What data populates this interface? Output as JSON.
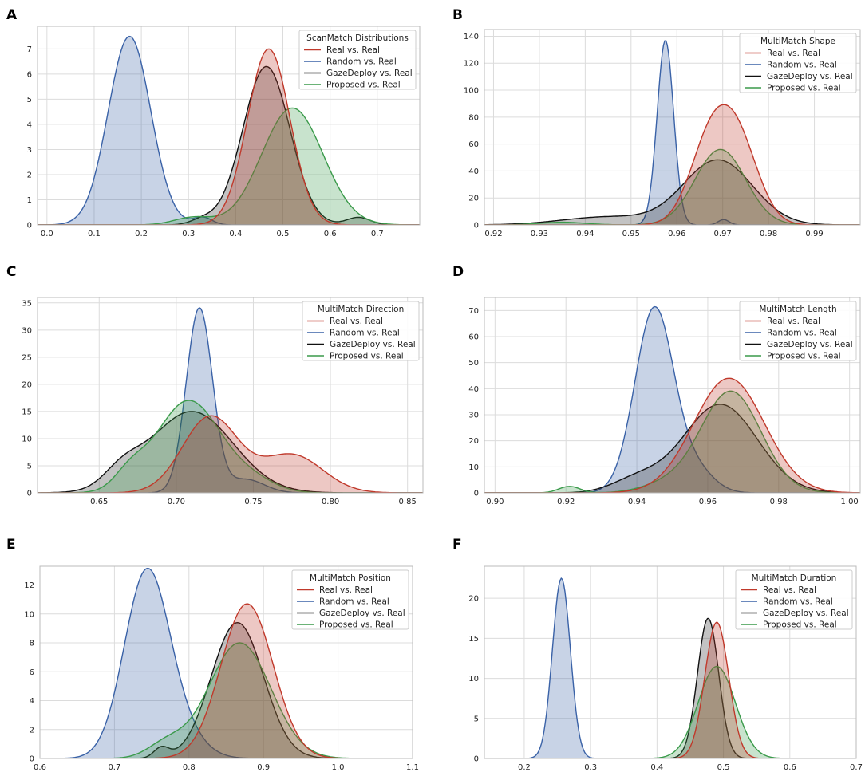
{
  "chart_data": [
    {
      "panel": "A",
      "type": "area",
      "title": "",
      "legend_title": "ScanMatch Distributions",
      "legend_loc": "top-right",
      "xlim": [
        -0.02,
        0.79
      ],
      "ylim": [
        0,
        7.9
      ],
      "xticks": [
        0.0,
        0.1,
        0.2,
        0.3,
        0.4,
        0.5,
        0.6,
        0.7
      ],
      "xtick_labels": [
        "0.0",
        "0.1",
        "0.2",
        "0.3",
        "0.4",
        "0.5",
        "0.6",
        "0.7"
      ],
      "yticks": [
        0,
        1,
        2,
        3,
        4,
        5,
        6,
        7
      ],
      "ytick_labels": [
        "0",
        "1",
        "2",
        "3",
        "4",
        "5",
        "6",
        "7"
      ],
      "series": [
        {
          "name": "Real vs. Real",
          "components": [
            [
              0.47,
              0.045,
              7.0
            ]
          ]
        },
        {
          "name": "Random vs. Real",
          "components": [
            [
              0.175,
              0.045,
              7.5
            ],
            [
              0.33,
              0.02,
              0.3
            ]
          ]
        },
        {
          "name": "GazeDeploy vs. Real",
          "components": [
            [
              0.465,
              0.05,
              6.3
            ],
            [
              0.33,
              0.025,
              0.2
            ],
            [
              0.66,
              0.025,
              0.3
            ]
          ]
        },
        {
          "name": "Proposed vs. Real",
          "components": [
            [
              0.52,
              0.065,
              4.65
            ],
            [
              0.31,
              0.04,
              0.3
            ]
          ]
        }
      ]
    },
    {
      "panel": "B",
      "type": "area",
      "title": "",
      "legend_title": "MultiMatch Shape",
      "legend_loc": "top-right",
      "xlim": [
        0.918,
        1.0
      ],
      "ylim": [
        0,
        145
      ],
      "xticks": [
        0.92,
        0.93,
        0.94,
        0.95,
        0.96,
        0.97,
        0.98,
        0.99
      ],
      "xtick_labels": [
        "0.92",
        "0.93",
        "0.94",
        "0.95",
        "0.96",
        "0.97",
        "0.98",
        "0.99"
      ],
      "yticks": [
        0,
        20,
        40,
        60,
        80,
        100,
        120,
        140
      ],
      "ytick_labels": [
        "0",
        "20",
        "40",
        "60",
        "80",
        "100",
        "120",
        "140"
      ],
      "series": [
        {
          "name": "Real vs. Real",
          "components": [
            [
              0.9672,
              0.0045,
              58
            ],
            [
              0.9735,
              0.0045,
              56
            ]
          ]
        },
        {
          "name": "Random vs. Real",
          "components": [
            [
              0.9575,
              0.0018,
              137
            ],
            [
              0.9702,
              0.0012,
              4
            ]
          ]
        },
        {
          "name": "GazeDeploy vs. Real",
          "components": [
            [
              0.969,
              0.0075,
              48
            ],
            [
              0.945,
              0.01,
              6
            ]
          ]
        },
        {
          "name": "Proposed vs. Real",
          "components": [
            [
              0.9695,
              0.0055,
              56
            ],
            [
              0.935,
              0.005,
              2
            ]
          ]
        }
      ]
    },
    {
      "panel": "C",
      "type": "area",
      "title": "",
      "legend_title": "MultiMatch Direction",
      "legend_loc": "top-right",
      "xlim": [
        0.61,
        0.86
      ],
      "ylim": [
        0,
        36
      ],
      "xticks": [
        0.65,
        0.7,
        0.75,
        0.8,
        0.85
      ],
      "xtick_labels": [
        "0.65",
        "0.70",
        "0.75",
        "0.80",
        "0.85"
      ],
      "yticks": [
        0,
        5,
        10,
        15,
        20,
        25,
        30,
        35
      ],
      "ytick_labels": [
        "0",
        "5",
        "10",
        "15",
        "20",
        "25",
        "30",
        "35"
      ],
      "series": [
        {
          "name": "Real vs. Real",
          "components": [
            [
              0.722,
              0.018,
              14
            ],
            [
              0.775,
              0.02,
              7
            ]
          ]
        },
        {
          "name": "Random vs. Real",
          "components": [
            [
              0.715,
              0.0085,
              34
            ],
            [
              0.745,
              0.012,
              2.5
            ]
          ]
        },
        {
          "name": "GazeDeploy vs. Real",
          "components": [
            [
              0.71,
              0.027,
              15
            ],
            [
              0.665,
              0.012,
              3
            ]
          ]
        },
        {
          "name": "Proposed vs. Real",
          "components": [
            [
              0.708,
              0.021,
              17
            ],
            [
              0.67,
              0.01,
              3
            ],
            [
              0.75,
              0.015,
              2
            ]
          ]
        }
      ]
    },
    {
      "panel": "D",
      "type": "area",
      "title": "",
      "legend_title": "MultiMatch Length",
      "legend_loc": "top-right",
      "xlim": [
        0.897,
        1.003
      ],
      "ylim": [
        0,
        75
      ],
      "xticks": [
        0.9,
        0.92,
        0.94,
        0.96,
        0.98,
        1.0
      ],
      "xtick_labels": [
        "0.90",
        "0.92",
        "0.94",
        "0.96",
        "0.98",
        "1.00"
      ],
      "yticks": [
        0,
        10,
        20,
        30,
        40,
        50,
        60,
        70
      ],
      "ytick_labels": [
        "0",
        "10",
        "20",
        "30",
        "40",
        "50",
        "60",
        "70"
      ],
      "series": [
        {
          "name": "Real vs. Real",
          "components": [
            [
              0.966,
              0.01,
              44
            ]
          ]
        },
        {
          "name": "Random vs. Real",
          "components": [
            [
              0.945,
              0.0055,
              71
            ],
            [
              0.957,
              0.005,
              8
            ]
          ]
        },
        {
          "name": "GazeDeploy vs. Real",
          "components": [
            [
              0.9635,
              0.0105,
              34
            ],
            [
              0.94,
              0.007,
              5
            ]
          ]
        },
        {
          "name": "Proposed vs. Real",
          "components": [
            [
              0.9665,
              0.0085,
              39
            ],
            [
              0.921,
              0.003,
              2.5
            ],
            [
              0.948,
              0.007,
              3
            ]
          ]
        }
      ]
    },
    {
      "panel": "E",
      "type": "area",
      "title": "",
      "legend_title": "MultiMatch Position",
      "legend_loc": "top-right",
      "xlim": [
        0.6,
        1.1
      ],
      "ylim": [
        0,
        13.3
      ],
      "xticks": [
        0.6,
        0.7,
        0.8,
        0.9,
        1.0,
        1.1
      ],
      "xtick_labels": [
        "0.6",
        "0.7",
        "0.8",
        "0.9",
        "1.0",
        "1.1"
      ],
      "yticks": [
        0,
        2,
        4,
        6,
        8,
        10,
        12
      ],
      "ytick_labels": [
        "0",
        "2",
        "4",
        "6",
        "8",
        "10",
        "12"
      ],
      "series": [
        {
          "name": "Real vs. Real",
          "components": [
            [
              0.878,
              0.035,
              10.7
            ]
          ]
        },
        {
          "name": "Random vs. Real",
          "components": [
            [
              0.743,
              0.03,
              12.7
            ],
            [
              0.79,
              0.03,
              1.5
            ]
          ]
        },
        {
          "name": "GazeDeploy vs. Real",
          "components": [
            [
              0.865,
              0.035,
              9.4
            ],
            [
              0.763,
              0.01,
              0.7
            ]
          ]
        },
        {
          "name": "Proposed vs. Real",
          "components": [
            [
              0.868,
              0.042,
              8.0
            ],
            [
              0.77,
              0.025,
              1.0
            ]
          ]
        }
      ]
    },
    {
      "panel": "F",
      "type": "area",
      "title": "",
      "legend_title": "MultiMatch Duration",
      "legend_loc": "top-right",
      "xlim": [
        0.14,
        0.7
      ],
      "ylim": [
        0,
        24
      ],
      "xticks": [
        0.2,
        0.3,
        0.4,
        0.5,
        0.6,
        0.7
      ],
      "xtick_labels": [
        "0.2",
        "0.3",
        "0.4",
        "0.5",
        "0.6",
        "0.7"
      ],
      "yticks": [
        0,
        5,
        10,
        15,
        20
      ],
      "ytick_labels": [
        "0",
        "5",
        "10",
        "15",
        "20"
      ],
      "series": [
        {
          "name": "Real vs. Real",
          "components": [
            [
              0.49,
              0.018,
              17
            ]
          ]
        },
        {
          "name": "Random vs. Real",
          "components": [
            [
              0.256,
              0.0135,
              22.5
            ]
          ]
        },
        {
          "name": "GazeDeploy vs. Real",
          "components": [
            [
              0.477,
              0.016,
              17.5
            ]
          ]
        },
        {
          "name": "Proposed vs. Real",
          "components": [
            [
              0.49,
              0.028,
              11.5
            ]
          ]
        }
      ]
    }
  ],
  "series_colors": {
    "Real vs. Real": "#c0392b",
    "Random vs. Real": "#3a62a7",
    "GazeDeploy vs. Real": "#111111",
    "Proposed vs. Real": "#3a9a4a"
  }
}
